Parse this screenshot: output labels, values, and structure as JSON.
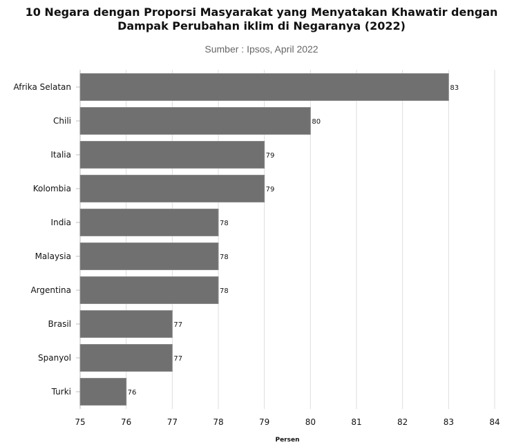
{
  "chart_data": {
    "type": "bar",
    "orientation": "horizontal",
    "title": "10 Negara dengan Proporsi Masyarakat yang Menyatakan Khawatir dengan Dampak Perubahan iklim di Negaranya (2022)",
    "subtitle": "Sumber : Ipsos, April 2022",
    "xlabel": "Persen",
    "ylabel": "",
    "categories": [
      "Afrika Selatan",
      "Chili",
      "Italia",
      "Kolombia",
      "India",
      "Malaysia",
      "Argentina",
      "Brasil",
      "Spanyol",
      "Turki"
    ],
    "values": [
      83,
      80,
      79,
      79,
      78,
      78,
      78,
      77,
      77,
      76
    ],
    "xlim": [
      75,
      84
    ],
    "xticks": [
      75,
      76,
      77,
      78,
      79,
      80,
      81,
      82,
      83,
      84
    ],
    "grid": "vertical",
    "legend": "none",
    "bar_color": "#707070"
  }
}
